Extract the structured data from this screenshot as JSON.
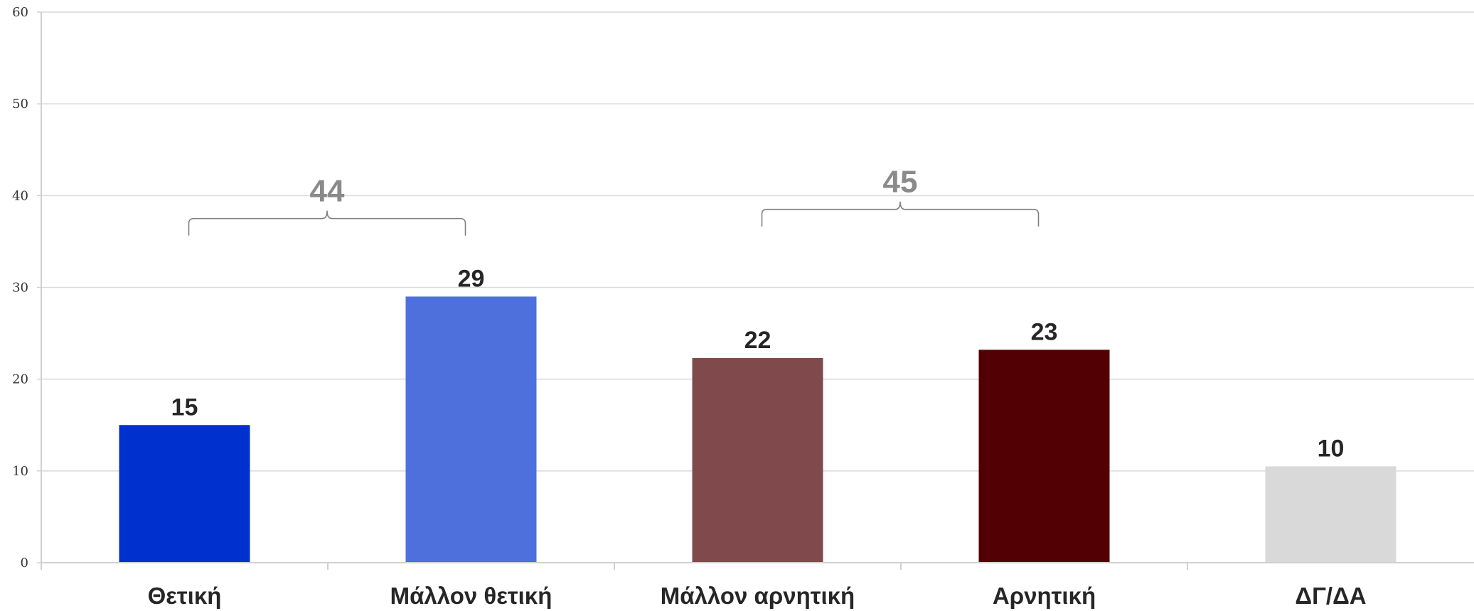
{
  "chart_data": {
    "type": "bar",
    "categories": [
      "Θετική",
      "Μάλλον θετική",
      "Μάλλον αρνητική",
      "Αρνητική",
      "ΔΓ/ΔΑ"
    ],
    "values": [
      15,
      29,
      22.3,
      23.2,
      10.5
    ],
    "data_labels": [
      "15",
      "29",
      "22",
      "23",
      "10"
    ],
    "colors": [
      "#0031cf",
      "#4d70dd",
      "#804a4c",
      "#520003",
      "#d9d9d9"
    ],
    "ylim": [
      0,
      60
    ],
    "yticks": [
      0,
      10,
      20,
      30,
      40,
      50,
      60
    ],
    "grid": true,
    "title": "",
    "xlabel": "",
    "ylabel": "",
    "brackets": [
      {
        "from": 0,
        "to": 1,
        "label": "44",
        "level": 37.5
      },
      {
        "from": 2,
        "to": 3,
        "label": "45",
        "level": 38.5
      }
    ]
  }
}
